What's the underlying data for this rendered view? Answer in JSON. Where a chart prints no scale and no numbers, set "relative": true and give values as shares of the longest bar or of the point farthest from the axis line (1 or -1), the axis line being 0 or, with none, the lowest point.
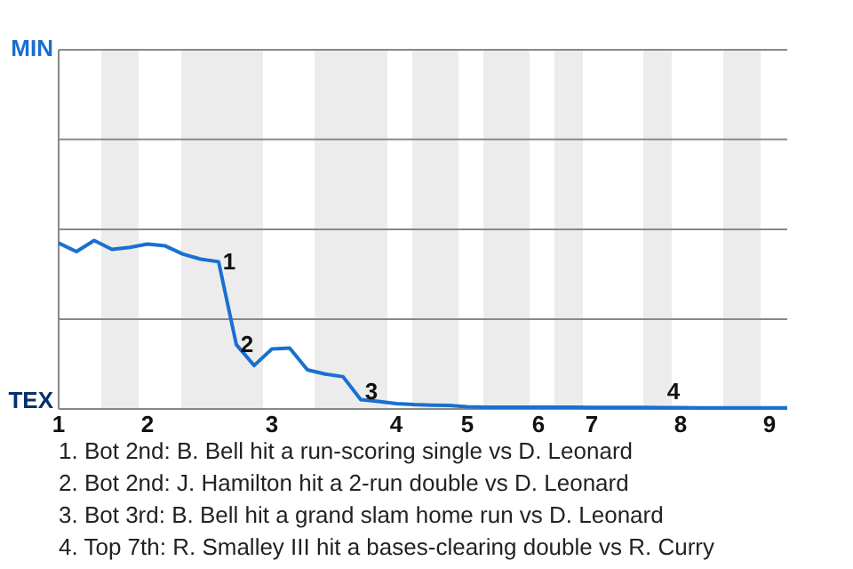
{
  "chart_data": {
    "type": "line",
    "relative": true,
    "categories": [
      "1",
      null,
      null,
      null,
      null,
      "2",
      null,
      null,
      null,
      null,
      null,
      null,
      "3",
      null,
      null,
      null,
      null,
      null,
      null,
      "4",
      null,
      null,
      null,
      "5",
      null,
      null,
      null,
      "6",
      null,
      null,
      "7",
      null,
      null,
      null,
      null,
      "8",
      null,
      null,
      null,
      null,
      "9",
      null
    ],
    "series": [
      {
        "color": "#1a6fd0",
        "values": [
          0.985,
          0.934,
          1,
          0.947,
          0.959,
          0.979,
          0.968,
          0.919,
          0.889,
          0.874,
          0.382,
          0.258,
          0.356,
          0.362,
          0.232,
          0.207,
          0.192,
          0.055,
          0.045,
          0.032,
          0.026,
          0.023,
          0.021,
          0.013,
          0.011,
          0.011,
          0.011,
          0.011,
          0.011,
          0.011,
          0.009,
          0.009,
          0.009,
          0.009,
          0.008,
          0.008,
          0.006,
          0.006,
          0.006,
          0.006,
          0.006,
          0.006
        ]
      }
    ],
    "marker": "none",
    "line_style": "solid",
    "ref_lines": [
      {
        "axis": "y",
        "value": 0.533,
        "color": "#888888"
      },
      {
        "axis": "y",
        "value": 1.066,
        "color": "#888888"
      },
      {
        "axis": "y",
        "value": 1.6,
        "color": "#888888"
      },
      {
        "axis": "y",
        "value": 2.132,
        "color": "#888888"
      }
    ],
    "annotations": [
      "MIN",
      "TEX",
      {
        "text": "1",
        "y": 0.874
      },
      {
        "text": "2",
        "y": 0.382
      },
      {
        "text": "3",
        "y": 0.055
      },
      {
        "text": "4",
        "y": 0.008
      },
      "1. Bot 2nd: B. Bell hit a run-scoring single vs D. Leonard",
      "2. Bot 2nd: J. Hamilton hit a 2-run double vs D. Leonard",
      "3. Bot 3rd: B. Bell hit a grand slam home run vs D. Leonard",
      "4. Top 7th: R. Smalley III hit a bases-clearing double vs R. Curry"
    ]
  }
}
